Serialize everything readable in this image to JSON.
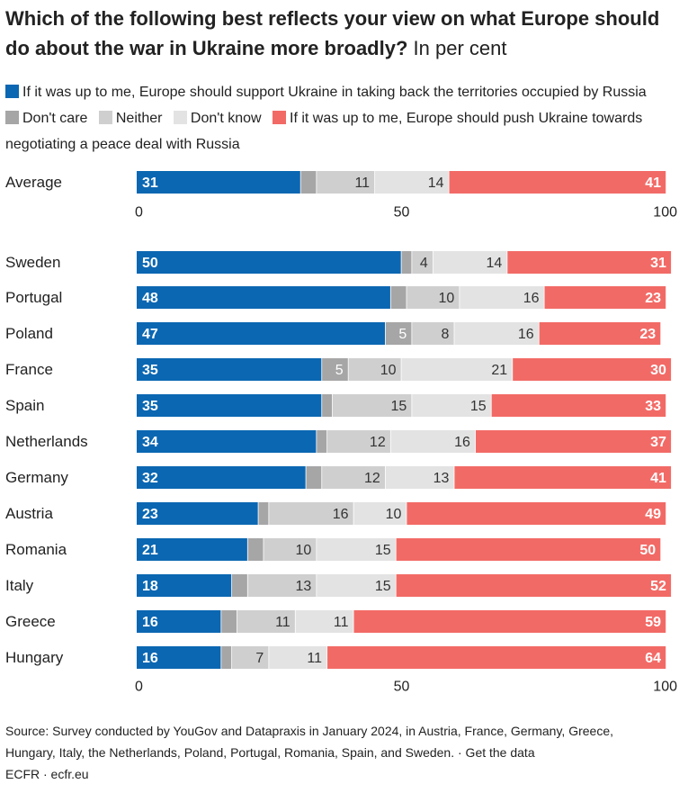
{
  "title": "Which of the following best reflects your view on what Europe should do about the war in Ukraine more broadly?",
  "subtitle": "In per cent",
  "colors": {
    "support": "#0b67b2",
    "dont_care": "#a6a6a6",
    "neither": "#cfcfcf",
    "dont_know": "#e3e3e3",
    "push": "#f26a66"
  },
  "chart_data": [
    {
      "type": "bar",
      "orientation": "horizontal",
      "stacked": true,
      "categories": [
        "Average"
      ],
      "xlim": [
        0,
        100
      ],
      "xticks": [
        0,
        50,
        100
      ],
      "series": [
        {
          "name": "If it was up to me, Europe should support Ukraine in taking back the territories occupied by Russia",
          "key": "support",
          "values": [
            31
          ]
        },
        {
          "name": "Don't care",
          "key": "dont_care",
          "values": [
            3
          ]
        },
        {
          "name": "Neither",
          "key": "neither",
          "values": [
            11
          ]
        },
        {
          "name": "Don't know",
          "key": "dont_know",
          "values": [
            14
          ]
        },
        {
          "name": "If it was up to me, Europe should push Ukraine towards negotiating a peace deal with Russia",
          "key": "push",
          "values": [
            41
          ]
        }
      ]
    },
    {
      "type": "bar",
      "orientation": "horizontal",
      "stacked": true,
      "categories": [
        "Sweden",
        "Portugal",
        "Poland",
        "France",
        "Spain",
        "Netherlands",
        "Germany",
        "Austria",
        "Romania",
        "Italy",
        "Greece",
        "Hungary"
      ],
      "xlim": [
        0,
        100
      ],
      "xticks": [
        0,
        50,
        100
      ],
      "series": [
        {
          "name": "If it was up to me, Europe should support Ukraine in taking back the territories occupied by Russia",
          "key": "support",
          "values": [
            50,
            48,
            47,
            35,
            35,
            34,
            32,
            23,
            21,
            18,
            16,
            16
          ]
        },
        {
          "name": "Don't care",
          "key": "dont_care",
          "values": [
            2,
            3,
            5,
            5,
            2,
            2,
            3,
            2,
            3,
            3,
            3,
            2
          ]
        },
        {
          "name": "Neither",
          "key": "neither",
          "values": [
            4,
            10,
            8,
            10,
            15,
            12,
            12,
            16,
            10,
            13,
            11,
            7
          ]
        },
        {
          "name": "Don't know",
          "key": "dont_know",
          "values": [
            14,
            16,
            16,
            21,
            15,
            16,
            13,
            10,
            15,
            15,
            11,
            11
          ]
        },
        {
          "name": "If it was up to me, Europe should push Ukraine towards negotiating a peace deal with Russia",
          "key": "push",
          "values": [
            31,
            23,
            23,
            30,
            33,
            37,
            41,
            49,
            50,
            52,
            59,
            64
          ]
        }
      ]
    }
  ],
  "legend": {
    "support": "If it was up to me, Europe should support Ukraine in taking back the territories occupied by Russia",
    "dont_care": "Don't care",
    "neither": "Neither",
    "dont_know": "Don't know",
    "push": "If it was up to me, Europe should push Ukraine towards negotiating a peace deal with Russia"
  },
  "source": {
    "line1": "Source: Survey conducted by YouGov and Datapraxis in January 2024, in Austria, France, Germany, Greece,",
    "line2": "Hungary, Italy, the Netherlands, Poland, Portugal, Romania, Spain, and Sweden. · Get the data",
    "line3": "ECFR · ecfr.eu"
  }
}
